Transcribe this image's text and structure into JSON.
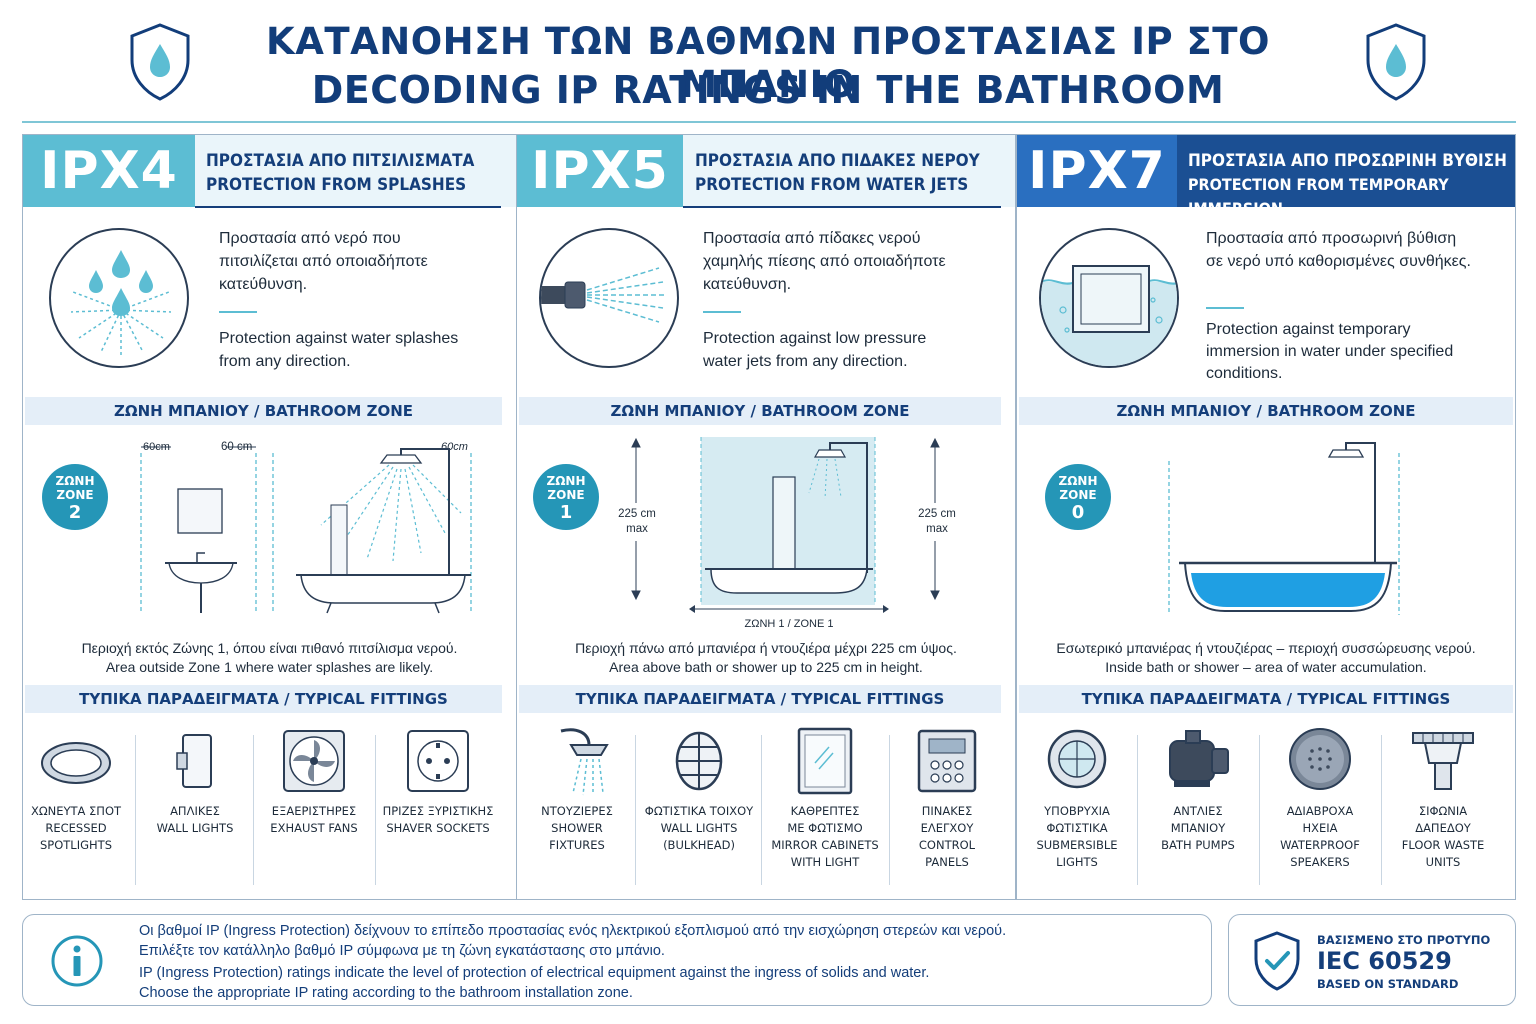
{
  "header": {
    "title_gr": "ΚΑΤΑΝΟΗΣΗ ΤΩΝ ΒΑΘΜΩΝ ΠΡΟΣΤΑΣΙΑΣ IP ΣΤΟ ΜΠΑΝΙΟ",
    "title_en": "DECODING IP RATINGS IN THE BATHROOM",
    "icons": [
      "shield-droplet-icon",
      "shield-droplet-icon"
    ]
  },
  "colors": {
    "navy": "#123d7a",
    "teal": "#5cbdd3",
    "zone_badge": "#2596b7",
    "blue_header": "#1b4f93",
    "band": "#e4eef8"
  },
  "panels": [
    {
      "code": "IPX4",
      "head_gr": "ΠΡΟΣΤΑΣΙΑ ΑΠΟ ΠΙΤΣΙΛΙΣΜΑΤΑ",
      "head_en": "PROTECTION FROM SPLASHES",
      "desc_gr": "Προστασία από νερό που πιτσιλίζεται από οποιαδήποτε κατεύθυνση.",
      "desc_en": "Protection against water splashes from any direction.",
      "zone_heading": "ΖΩΝΗ ΜΠΑΝΙΟΥ / BATHROOM ZONE",
      "zone_label_gr": "ΖΩΝΗ",
      "zone_label_en": "ZONE",
      "zone_number": "2",
      "dim_left": "60cm",
      "dim_mid": "60 cm",
      "dim_right": "60cm",
      "zone_note_gr": "Περιοχή εκτός Ζώνης 1, όπου είναι πιθανό πιτσίλισμα νερού.",
      "zone_note_en": "Area outside Zone 1 where water splashes are likely.",
      "fittings_heading": "ΤΥΠΙΚΑ ΠΑΡΑΔΕΙΓΜΑΤΑ / TYPICAL FITTINGS",
      "fittings": [
        {
          "gr": "ΧΩΝΕΥΤΑ ΣΠΟΤ",
          "en": "RECESSED SPOTLIGHTS",
          "icon": "recessed-spotlight-icon"
        },
        {
          "gr": "ΑΠΛΙΚΕΣ",
          "en": "WALL LIGHTS",
          "icon": "wall-light-icon"
        },
        {
          "gr": "ΕΞΑΕΡΙΣΤΗΡΕΣ",
          "en": "EXHAUST FANS",
          "icon": "exhaust-fan-icon"
        },
        {
          "gr": "ΠΡΙΖΕΣ ΞΥΡΙΣΤΙΚΗΣ",
          "en": "SHAVER SOCKETS",
          "icon": "shaver-socket-icon"
        }
      ]
    },
    {
      "code": "IPX5",
      "head_gr": "ΠΡΟΣΤΑΣΙΑ ΑΠΟ ΠΙΔΑΚΕΣ ΝΕΡΟΥ",
      "head_en": "PROTECTION FROM WATER JETS",
      "desc_gr": "Προστασία από πίδακες νερού χαμηλής πίεσης από οποιαδήποτε κατεύθυνση.",
      "desc_en": "Protection against low pressure water jets from any direction.",
      "zone_heading": "ΖΩΝΗ ΜΠΑΝΙΟΥ / BATHROOM ZONE",
      "zone_label_gr": "ΖΩΝΗ",
      "zone_label_en": "ZONE",
      "zone_number": "1",
      "height_label": "225 cm",
      "height_max": "max",
      "zone_caption": "ΖΩΝΗ 1 / ZONE 1",
      "zone_note_gr": "Περιοχή πάνω από μπανιέρα ή ντουζιέρα μέχρι 225 cm ύψος.",
      "zone_note_en": "Area above bath or shower up to 225 cm in height.",
      "fittings_heading": "ΤΥΠΙΚΑ ΠΑΡΑΔΕΙΓΜΑΤΑ / TYPICAL FITTINGS",
      "fittings": [
        {
          "gr": "ΝΤΟΥΖΙΕΡΕΣ",
          "en": "SHOWER FIXTURES",
          "icon": "shower-head-icon"
        },
        {
          "gr": "ΦΩΤΙΣΤΙΚΑ ΤΟΙΧΟΥ",
          "en": "WALL LIGHTS (BULKHEAD)",
          "icon": "bulkhead-light-icon"
        },
        {
          "gr": "ΚΑΘΡΕΠΤΕΣ ΜΕ ΦΩΤΙΣΜΟ",
          "en": "MIRROR CABINETS WITH LIGHT",
          "icon": "mirror-cabinet-icon"
        },
        {
          "gr": "ΠΙΝΑΚΕΣ ΕΛΕΓΧΟΥ",
          "en": "CONTROL PANELS",
          "icon": "control-panel-icon"
        }
      ]
    },
    {
      "code": "IPX7",
      "head_gr": "ΠΡΟΣΤΑΣΙΑ ΑΠΟ ΠΡΟΣΩΡΙΝΗ ΒΥΘΙΣΗ",
      "head_en": "PROTECTION FROM TEMPORARY IMMERSION",
      "desc_gr": "Προστασία από προσωρινή βύθιση σε νερό υπό καθορισμένες συνθήκες.",
      "desc_en": "Protection against temporary immersion in water under specified conditions.",
      "zone_heading": "ΖΩΝΗ ΜΠΑΝΙΟΥ / BATHROOM ZONE",
      "zone_label_gr": "ΖΩΝΗ",
      "zone_label_en": "ZONE",
      "zone_number": "0",
      "zone_note_gr": "Εσωτερικό μπανιέρας ή ντουζιέρας – περιοχή συσσώρευσης νερού.",
      "zone_note_en": "Inside bath or shower – area of water accumulation.",
      "fittings_heading": "ΤΥΠΙΚΑ ΠΑΡΑΔΕΙΓΜΑΤΑ / TYPICAL FITTINGS",
      "fittings": [
        {
          "gr": "ΥΠΟΒΡΥΧΙΑ ΦΩΤΙΣΤΙΚΑ",
          "en": "SUBMERSIBLE LIGHTS",
          "icon": "submersible-light-icon"
        },
        {
          "gr": "ΑΝΤΛΙΕΣ ΜΠΑΝΙΟΥ",
          "en": "BATH PUMPS",
          "icon": "bath-pump-icon"
        },
        {
          "gr": "ΑΔΙΑΒΡΟΧΑ ΗΧΕΙΑ",
          "en": "WATERPROOF SPEAKERS",
          "icon": "waterproof-speaker-icon"
        },
        {
          "gr": "ΣΙΦΩΝΙΑ ΔΑΠΕΔΟΥ",
          "en": "FLOOR WASTE UNITS",
          "icon": "floor-drain-icon"
        }
      ]
    }
  ],
  "footer": {
    "info_icon": "info-icon",
    "line1": "Οι βαθμοί IP (Ingress Protection) δείχνουν το επίπεδο προστασίας ενός ηλεκτρικού εξοπλισμού από την εισχώρηση στερεών και νερού.",
    "line2": "Επιλέξτε τον κατάλληλο βαθμό IP σύμφωνα με τη ζώνη εγκατάστασης στο μπάνιο.",
    "line3": "IP (Ingress Protection) ratings indicate the level of protection of electrical equipment against the ingress of solids and water.",
    "line4": "Choose the appropriate IP rating according to the bathroom installation zone.",
    "standard_gr": "ΒΑΣΙΣΜΕΝΟ ΣΤΟ ΠΡΟΤΥΠΟ",
    "standard_code": "IEC 60529",
    "standard_en": "BASED ON STANDARD",
    "standard_icon": "shield-check-icon"
  }
}
